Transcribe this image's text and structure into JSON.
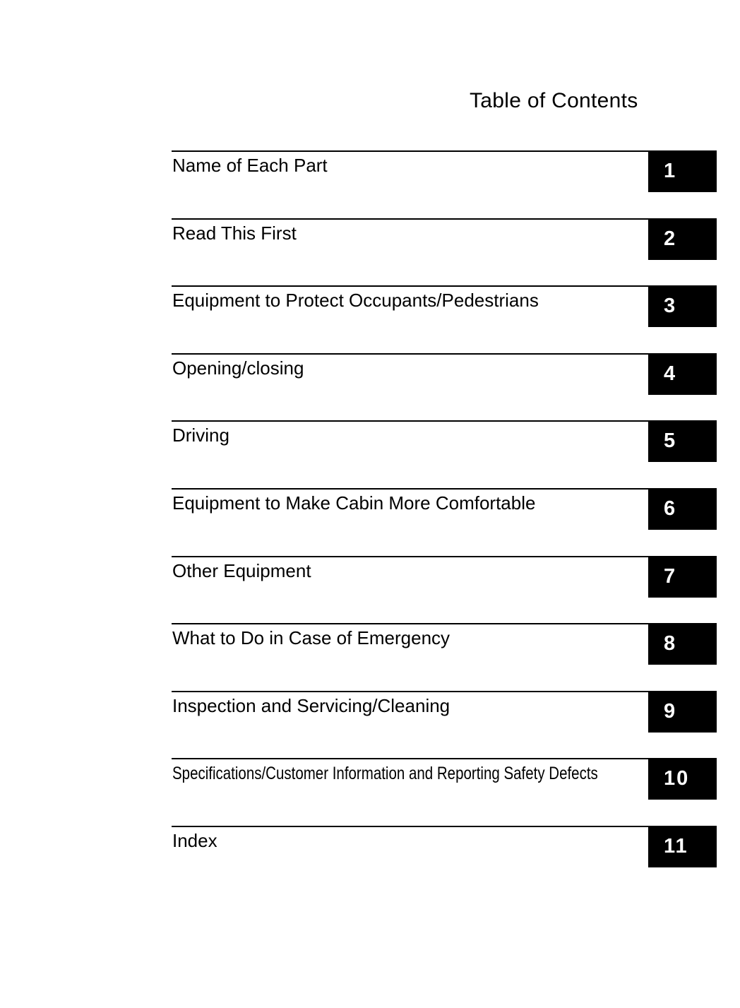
{
  "title": "Table of Contents",
  "entries": [
    {
      "label": "Name of Each Part",
      "number": "1"
    },
    {
      "label": "Read This First",
      "number": "2"
    },
    {
      "label": "Equipment to Protect Occupants/Pedestrians",
      "number": "3"
    },
    {
      "label": "Opening/closing",
      "number": "4"
    },
    {
      "label": "Driving",
      "number": "5"
    },
    {
      "label": "Equipment to Make Cabin More Comfortable",
      "number": "6"
    },
    {
      "label": "Other Equipment",
      "number": "7"
    },
    {
      "label": "What to Do in Case of Emergency",
      "number": "8"
    },
    {
      "label": "Inspection and Servicing/Cleaning",
      "number": "9"
    },
    {
      "label": "Specifications/Customer Information and Reporting Safety Defects",
      "number": "10"
    },
    {
      "label": "Index",
      "number": "11"
    }
  ]
}
